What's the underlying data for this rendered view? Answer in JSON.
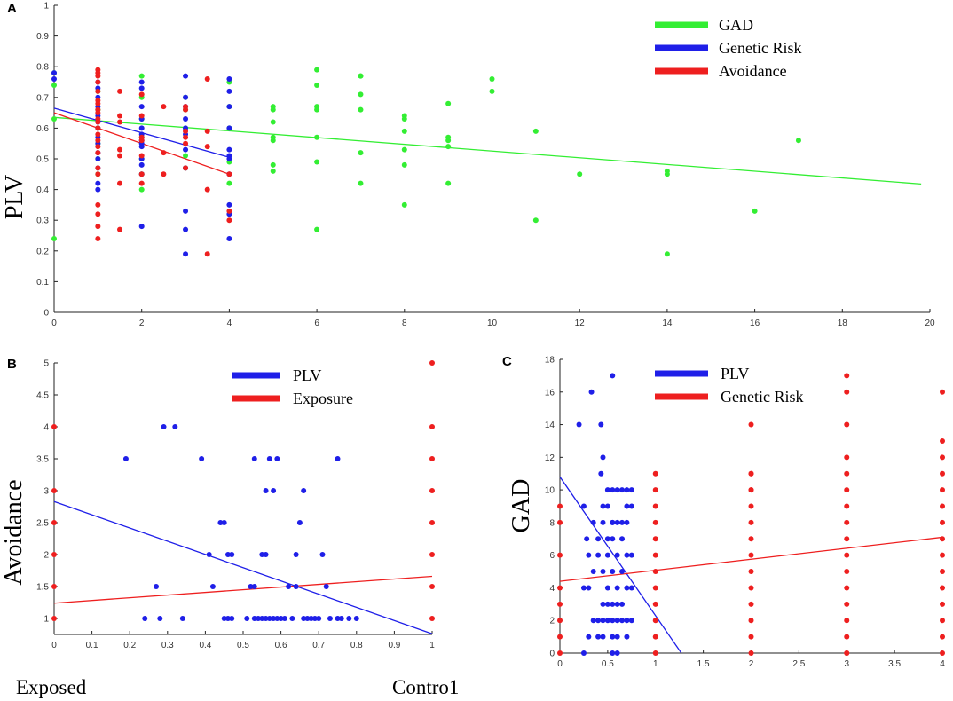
{
  "chart_data": [
    {
      "panel": "A",
      "type": "scatter",
      "ylabel": "PLV",
      "xlim": [
        0,
        20
      ],
      "ylim": [
        0,
        1
      ],
      "xticks": [
        "0",
        "2",
        "4",
        "6",
        "8",
        "10",
        "12",
        "14",
        "16",
        "18",
        "20"
      ],
      "yticks": [
        "0",
        "0.1",
        "0.2",
        "0.3",
        "0.4",
        "0.5",
        "0.6",
        "0.7",
        "0.8",
        "0.9",
        "1"
      ],
      "legend": [
        {
          "name": "GAD",
          "color": "#33ee33"
        },
        {
          "name": "Genetic Risk",
          "color": "#1f1fe8"
        },
        {
          "name": "Avoidance",
          "color": "#ee1f1f"
        }
      ],
      "series": [
        {
          "name": "GAD",
          "color": "#33ee33",
          "x": [
            0,
            0,
            0,
            0,
            1,
            1,
            1,
            1,
            1,
            1,
            2,
            2,
            2,
            2,
            2,
            2,
            2,
            3,
            3,
            3,
            3,
            3,
            4,
            4,
            4,
            4,
            4,
            5,
            5,
            5,
            5,
            5,
            5,
            5,
            6,
            6,
            6,
            6,
            6,
            6,
            6,
            7,
            7,
            7,
            7,
            7,
            7,
            8,
            8,
            8,
            8,
            8,
            8,
            9,
            9,
            9,
            9,
            9,
            10,
            10,
            11,
            11,
            12,
            14,
            14,
            14,
            16,
            17
          ],
          "y": [
            0.78,
            0.74,
            0.63,
            0.24,
            0.72,
            0.66,
            0.6,
            0.55,
            0.5,
            0.45,
            0.77,
            0.7,
            0.63,
            0.57,
            0.5,
            0.45,
            0.4,
            0.7,
            0.66,
            0.6,
            0.51,
            0.47,
            0.75,
            0.67,
            0.6,
            0.49,
            0.42,
            0.67,
            0.66,
            0.62,
            0.57,
            0.56,
            0.48,
            0.46,
            0.79,
            0.74,
            0.67,
            0.66,
            0.57,
            0.49,
            0.27,
            0.77,
            0.77,
            0.71,
            0.66,
            0.52,
            0.42,
            0.64,
            0.63,
            0.59,
            0.53,
            0.48,
            0.35,
            0.68,
            0.57,
            0.56,
            0.54,
            0.42,
            0.76,
            0.72,
            0.59,
            0.3,
            0.45,
            0.46,
            0.45,
            0.19,
            0.33,
            0.56
          ],
          "fit": [
            [
              0,
              0.635
            ],
            [
              19.8,
              0.418
            ]
          ]
        },
        {
          "name": "Genetic Risk",
          "color": "#1f1fe8",
          "x": [
            0,
            0,
            1,
            1,
            1,
            1,
            1,
            1,
            1,
            1,
            1,
            1,
            1,
            1,
            1,
            1,
            2,
            2,
            2,
            2,
            2,
            2,
            2,
            2,
            2,
            2,
            2,
            2,
            2,
            3,
            3,
            3,
            3,
            3,
            3,
            3,
            3,
            3,
            3,
            3,
            4,
            4,
            4,
            4,
            4,
            4,
            4,
            4,
            4,
            4,
            4
          ],
          "y": [
            0.78,
            0.76,
            0.75,
            0.73,
            0.7,
            0.67,
            0.64,
            0.62,
            0.6,
            0.57,
            0.55,
            0.52,
            0.5,
            0.47,
            0.42,
            0.4,
            0.75,
            0.73,
            0.67,
            0.63,
            0.6,
            0.58,
            0.56,
            0.55,
            0.54,
            0.5,
            0.48,
            0.45,
            0.28,
            0.77,
            0.7,
            0.67,
            0.63,
            0.6,
            0.58,
            0.53,
            0.47,
            0.33,
            0.27,
            0.19,
            0.76,
            0.72,
            0.67,
            0.6,
            0.53,
            0.51,
            0.5,
            0.45,
            0.35,
            0.32,
            0.24
          ],
          "fit": [
            [
              0,
              0.665
            ],
            [
              4,
              0.505
            ]
          ]
        },
        {
          "name": "Avoidance",
          "color": "#ee1f1f",
          "x": [
            1,
            1,
            1,
            1,
            1,
            1,
            1,
            1,
            1,
            1,
            1,
            1,
            1,
            1,
            1,
            1,
            1,
            1,
            1,
            1,
            1,
            1,
            1.5,
            1.5,
            1.5,
            1.5,
            1.5,
            1.5,
            1.5,
            2,
            2,
            2,
            2,
            2,
            2,
            2,
            2.5,
            2.5,
            2.5,
            3,
            3,
            3,
            3,
            3,
            3,
            3.5,
            3.5,
            3.5,
            3.5,
            3.5,
            4,
            4,
            4
          ],
          "y": [
            0.79,
            0.78,
            0.77,
            0.75,
            0.72,
            0.69,
            0.68,
            0.66,
            0.65,
            0.63,
            0.62,
            0.6,
            0.58,
            0.56,
            0.54,
            0.52,
            0.47,
            0.45,
            0.35,
            0.32,
            0.28,
            0.24,
            0.72,
            0.64,
            0.62,
            0.53,
            0.51,
            0.42,
            0.27,
            0.71,
            0.64,
            0.57,
            0.56,
            0.51,
            0.45,
            0.42,
            0.67,
            0.52,
            0.45,
            0.67,
            0.66,
            0.59,
            0.57,
            0.55,
            0.47,
            0.76,
            0.59,
            0.54,
            0.4,
            0.19,
            0.45,
            0.33,
            0.3
          ],
          "fit": [
            [
              0,
              0.65
            ],
            [
              4,
              0.45
            ]
          ]
        }
      ]
    },
    {
      "panel": "B",
      "type": "scatter",
      "ylabel": "Avoidance",
      "xlim": [
        0,
        1
      ],
      "ylim": [
        0.75,
        5
      ],
      "xticks": [
        "0",
        "0.1",
        "0.2",
        "0.3",
        "0.4",
        "0.5",
        "0.6",
        "0.7",
        "0.8",
        "0.9",
        "1"
      ],
      "yticks": [
        "1",
        "1.5",
        "2",
        "2.5",
        "3",
        "3.5",
        "4",
        "4.5",
        "5"
      ],
      "xlabel_left": "Exposed",
      "xlabel_right": "Contro1",
      "legend": [
        {
          "name": "PLV",
          "color": "#1f1fe8"
        },
        {
          "name": "Exposure",
          "color": "#ee1f1f"
        }
      ],
      "series": [
        {
          "name": "PLV",
          "color": "#1f1fe8",
          "x": [
            0.29,
            0.32,
            0.19,
            0.39,
            0.53,
            0.57,
            0.59,
            0.75,
            0.56,
            0.58,
            0.66,
            0.44,
            0.45,
            0.65,
            0.41,
            0.46,
            0.47,
            0.55,
            0.56,
            0.64,
            0.71,
            0.27,
            0.42,
            0.52,
            0.53,
            0.62,
            0.64,
            0.72,
            0.24,
            0.28,
            0.34,
            0.45,
            0.46,
            0.47,
            0.51,
            0.53,
            0.54,
            0.55,
            0.56,
            0.57,
            0.58,
            0.59,
            0.6,
            0.61,
            0.63,
            0.66,
            0.67,
            0.68,
            0.69,
            0.7,
            0.73,
            0.75,
            0.76,
            0.78,
            0.8
          ],
          "y": [
            4,
            4,
            3.5,
            3.5,
            3.5,
            3.5,
            3.5,
            3.5,
            3,
            3,
            3,
            2.5,
            2.5,
            2.5,
            2,
            2,
            2,
            2,
            2,
            2,
            2,
            1.5,
            1.5,
            1.5,
            1.5,
            1.5,
            1.5,
            1.5,
            1,
            1,
            1,
            1,
            1,
            1,
            1,
            1,
            1,
            1,
            1,
            1,
            1,
            1,
            1,
            1,
            1,
            1,
            1,
            1,
            1,
            1,
            1,
            1,
            1,
            1,
            1
          ],
          "fit": [
            [
              0,
              2.83
            ],
            [
              1,
              0.76
            ]
          ]
        },
        {
          "name": "Exposure",
          "color": "#ee1f1f",
          "x": [
            0,
            0,
            0,
            0,
            0,
            0,
            1,
            1,
            1,
            1,
            1,
            1,
            1,
            1
          ],
          "y": [
            4,
            3,
            2.5,
            2,
            1.5,
            1,
            5,
            4,
            3.5,
            3,
            2.5,
            2,
            1.5,
            1
          ],
          "fit": [
            [
              0,
              1.24
            ],
            [
              1,
              1.66
            ]
          ]
        }
      ]
    },
    {
      "panel": "C",
      "type": "scatter",
      "ylabel": "GAD",
      "xlim": [
        0,
        4
      ],
      "ylim": [
        0,
        18
      ],
      "xticks": [
        "0",
        "0.5",
        "1",
        "1.5",
        "2",
        "2.5",
        "3",
        "3.5",
        "4"
      ],
      "yticks": [
        "0",
        "2",
        "4",
        "6",
        "8",
        "10",
        "12",
        "14",
        "16",
        "18"
      ],
      "legend": [
        {
          "name": "PLV",
          "color": "#1f1fe8"
        },
        {
          "name": "Genetic Risk",
          "color": "#ee1f1f"
        }
      ],
      "series": [
        {
          "name": "PLV",
          "color": "#1f1fe8",
          "x": [
            0.55,
            0.33,
            0.2,
            0.43,
            0.45,
            0.43,
            0.25,
            0.45,
            0.5,
            0.7,
            0.75,
            0.35,
            0.45,
            0.55,
            0.6,
            0.28,
            0.4,
            0.5,
            0.55,
            0.65,
            0.3,
            0.4,
            0.5,
            0.6,
            0.7,
            0.75,
            0.35,
            0.45,
            0.55,
            0.65,
            0.25,
            0.3,
            0.5,
            0.6,
            0.7,
            0.75,
            0.45,
            0.5,
            0.55,
            0.6,
            0.65,
            0.35,
            0.45,
            0.55,
            0.7,
            0.4,
            0.5,
            0.6,
            0.65,
            0.75,
            0.3,
            0.4,
            0.45,
            0.55,
            0.6,
            0.7,
            0.5,
            0.55,
            0.6,
            0.7,
            0.65,
            0.75,
            0.55,
            0.65,
            0.7,
            0.25,
            0.55,
            0.6
          ],
          "y": [
            17,
            16,
            14,
            14,
            12,
            11,
            9,
            9,
            9,
            9,
            9,
            8,
            8,
            8,
            8,
            7,
            7,
            7,
            7,
            7,
            6,
            6,
            6,
            6,
            6,
            6,
            5,
            5,
            5,
            5,
            4,
            4,
            4,
            4,
            4,
            4,
            3,
            3,
            3,
            3,
            3,
            2,
            2,
            2,
            2,
            2,
            2,
            2,
            2,
            2,
            1,
            1,
            1,
            1,
            1,
            1,
            10,
            10,
            10,
            10,
            10,
            10,
            8,
            8,
            8,
            0,
            0,
            0
          ],
          "fit": [
            [
              0,
              10.8
            ],
            [
              1.27,
              0
            ]
          ]
        },
        {
          "name": "Genetic Risk",
          "color": "#ee1f1f",
          "x": [
            0,
            0,
            0,
            0,
            0,
            0,
            0,
            0,
            1,
            1,
            1,
            1,
            1,
            1,
            1,
            1,
            1,
            1,
            1,
            1,
            2,
            2,
            2,
            2,
            2,
            2,
            2,
            2,
            2,
            2,
            2,
            2,
            2,
            2,
            2,
            3,
            3,
            3,
            3,
            3,
            3,
            3,
            3,
            3,
            3,
            3,
            3,
            3,
            3,
            3,
            3,
            3,
            4,
            4,
            4,
            4,
            4,
            4,
            4,
            4,
            4,
            4,
            4,
            4,
            4,
            4,
            4
          ],
          "y": [
            9,
            8,
            6,
            4,
            3,
            2,
            1,
            0,
            11,
            10,
            9,
            8,
            7,
            6,
            5,
            4,
            3,
            2,
            1,
            0,
            14,
            11,
            10,
            9,
            8,
            7,
            6,
            5,
            4,
            3,
            2,
            1,
            0,
            11,
            10,
            17,
            16,
            14,
            12,
            11,
            10,
            9,
            8,
            7,
            6,
            5,
            4,
            3,
            2,
            1,
            0,
            0,
            16,
            13,
            12,
            11,
            10,
            9,
            8,
            7,
            6,
            5,
            4,
            3,
            2,
            1,
            0
          ],
          "fit": [
            [
              0,
              4.4
            ],
            [
              4,
              7.1
            ]
          ]
        }
      ]
    }
  ]
}
